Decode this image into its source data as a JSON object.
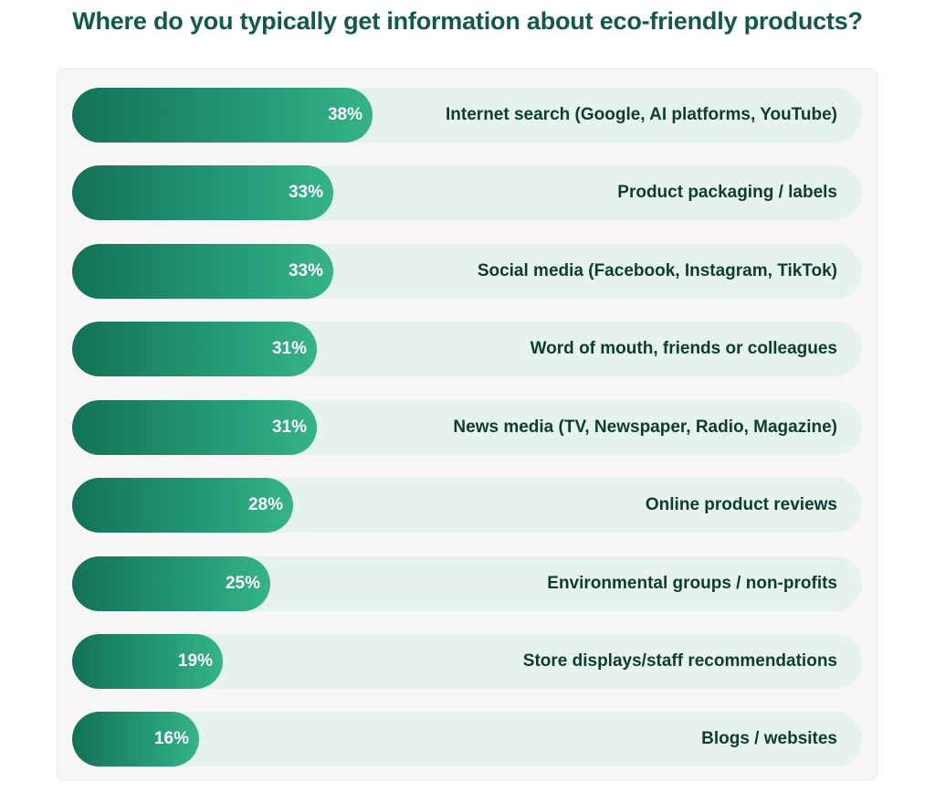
{
  "chart_data": {
    "type": "bar",
    "orientation": "horizontal",
    "title": "Where do you typically get information about eco-friendly products?",
    "xlim": [
      0,
      100
    ],
    "grid": false,
    "categories": [
      "Internet search (Google, AI platforms, YouTube)",
      "Product packaging / labels",
      "Social media (Facebook, Instagram, TikTok)",
      "Word of mouth, friends or colleagues",
      "News media (TV, Newspaper, Radio, Magazine)",
      "Online product reviews",
      "Environmental groups / non-profits",
      "Store displays/staff recommendations",
      "Blogs / websites"
    ],
    "values": [
      38,
      33,
      33,
      31,
      31,
      28,
      25,
      19,
      16
    ],
    "value_labels": [
      "38%",
      "33%",
      "33%",
      "31%",
      "31%",
      "28%",
      "25%",
      "19%",
      "16%"
    ]
  },
  "colors": {
    "title": "#0f5a48",
    "bar_start": "#137255",
    "bar_end": "#36b387",
    "track": "#e5f3ec",
    "panel": "#f7f5f5",
    "label": "#0e3d30"
  }
}
